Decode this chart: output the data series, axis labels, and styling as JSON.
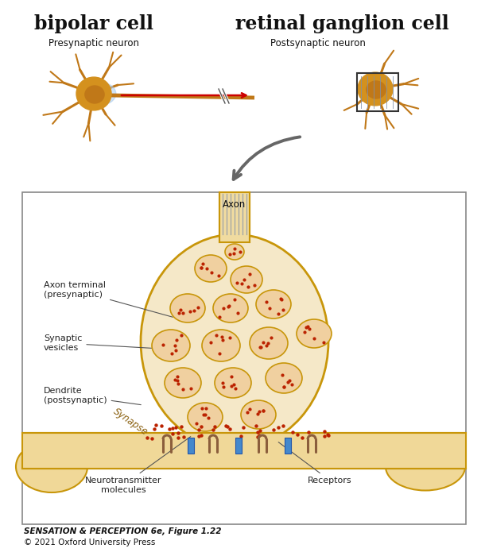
{
  "title_left": "bipolar cell",
  "title_right": "retinal ganglion cell",
  "subtitle_left": "Presynaptic neuron",
  "subtitle_right": "Postsynaptic neuron",
  "caption_line1": "SENSATION & PERCEPTION 6e, Figure 1.22",
  "caption_line2": "© 2021 Oxford University Press",
  "label_axon": "Axon",
  "label_axon_terminal": "Axon terminal\n(presynaptic)",
  "label_synaptic_vesicles": "Synaptic\nvesicles",
  "label_dendrite": "Dendrite\n(postsynaptic)",
  "label_synapse": "Synapse",
  "label_neurotransmitter": "Neurotransmitter\nmolecules",
  "label_receptors": "Receptors",
  "bg_color": "#ffffff",
  "cell_fill": "#f5e8c8",
  "cell_edge": "#c8960a",
  "vesicle_fill": "#f0d0a0",
  "vesicle_edge": "#c8960a",
  "dot_color": "#bb2200",
  "axon_stripe_color": "#8090aa",
  "text_color": "#111111",
  "label_color": "#222222",
  "box_edge_color": "#888888",
  "neuron_body_color": "#d4911e",
  "neuron_nucleus_color": "#c07818",
  "neuron_dendrite_color": "#c07818",
  "post_fill": "#f0d898",
  "post_edge": "#c8960a",
  "synapse_text_color": "#8a6010",
  "receptor_blue": "#4488cc",
  "receptor_brown": "#8B5E3C",
  "arrow_color": "#555555",
  "arrow_down_color": "#666666"
}
